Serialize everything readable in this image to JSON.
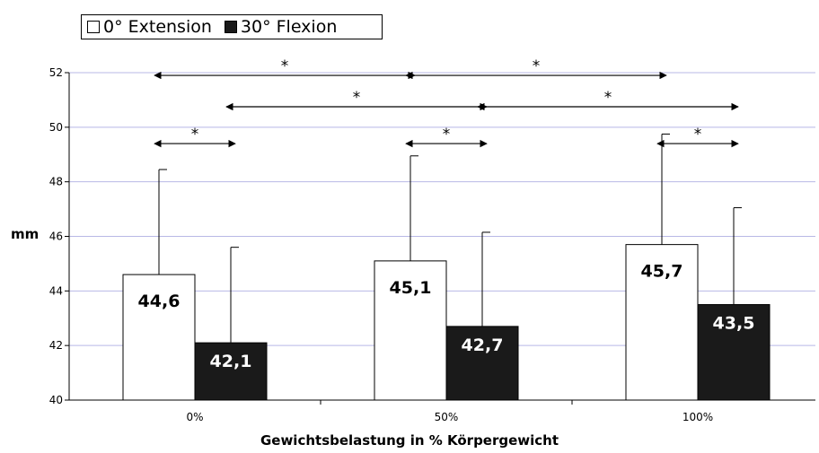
{
  "chart_data": {
    "type": "bar",
    "categories": [
      "0%",
      "50%",
      "100%"
    ],
    "series": [
      {
        "name": "0° Extension",
        "values": [
          44.6,
          45.1,
          45.7
        ],
        "error_upper": [
          48.45,
          48.95,
          49.75
        ],
        "color": "#ffffff",
        "value_labels": [
          "44,6",
          "45,1",
          "45,7"
        ]
      },
      {
        "name": "30° Flexion",
        "values": [
          42.1,
          42.7,
          43.5
        ],
        "error_upper": [
          45.6,
          46.15,
          47.05
        ],
        "color": "#1a1a1a",
        "value_labels": [
          "42,1",
          "42,7",
          "43,5"
        ]
      }
    ],
    "xlabel": "Gewichtsbelastung in % Körpergewicht",
    "ylabel": "mm",
    "ylim": [
      40,
      52
    ],
    "yticks": [
      40,
      42,
      44,
      46,
      48,
      50,
      52
    ],
    "grid": true,
    "legend_position": "top-left",
    "significance": [
      {
        "label": "*",
        "y": 51.9,
        "from": {
          "category": 0,
          "series": 0
        },
        "to": {
          "category": 1,
          "series": 0
        }
      },
      {
        "label": "*",
        "y": 51.9,
        "from": {
          "category": 1,
          "series": 0
        },
        "to": {
          "category": 2,
          "series": 0
        }
      },
      {
        "label": "*",
        "y": 50.75,
        "from": {
          "category": 0,
          "series": 1
        },
        "to": {
          "category": 1,
          "series": 1
        }
      },
      {
        "label": "*",
        "y": 50.75,
        "from": {
          "category": 1,
          "series": 1
        },
        "to": {
          "category": 2,
          "series": 1
        }
      },
      {
        "label": "*",
        "y": 49.4,
        "from": {
          "category": 0,
          "series": 0
        },
        "to": {
          "category": 0,
          "series": 1
        }
      },
      {
        "label": "*",
        "y": 49.4,
        "from": {
          "category": 1,
          "series": 0
        },
        "to": {
          "category": 1,
          "series": 1
        }
      },
      {
        "label": "*",
        "y": 49.4,
        "from": {
          "category": 2,
          "series": 0
        },
        "to": {
          "category": 2,
          "series": 1
        }
      }
    ]
  }
}
